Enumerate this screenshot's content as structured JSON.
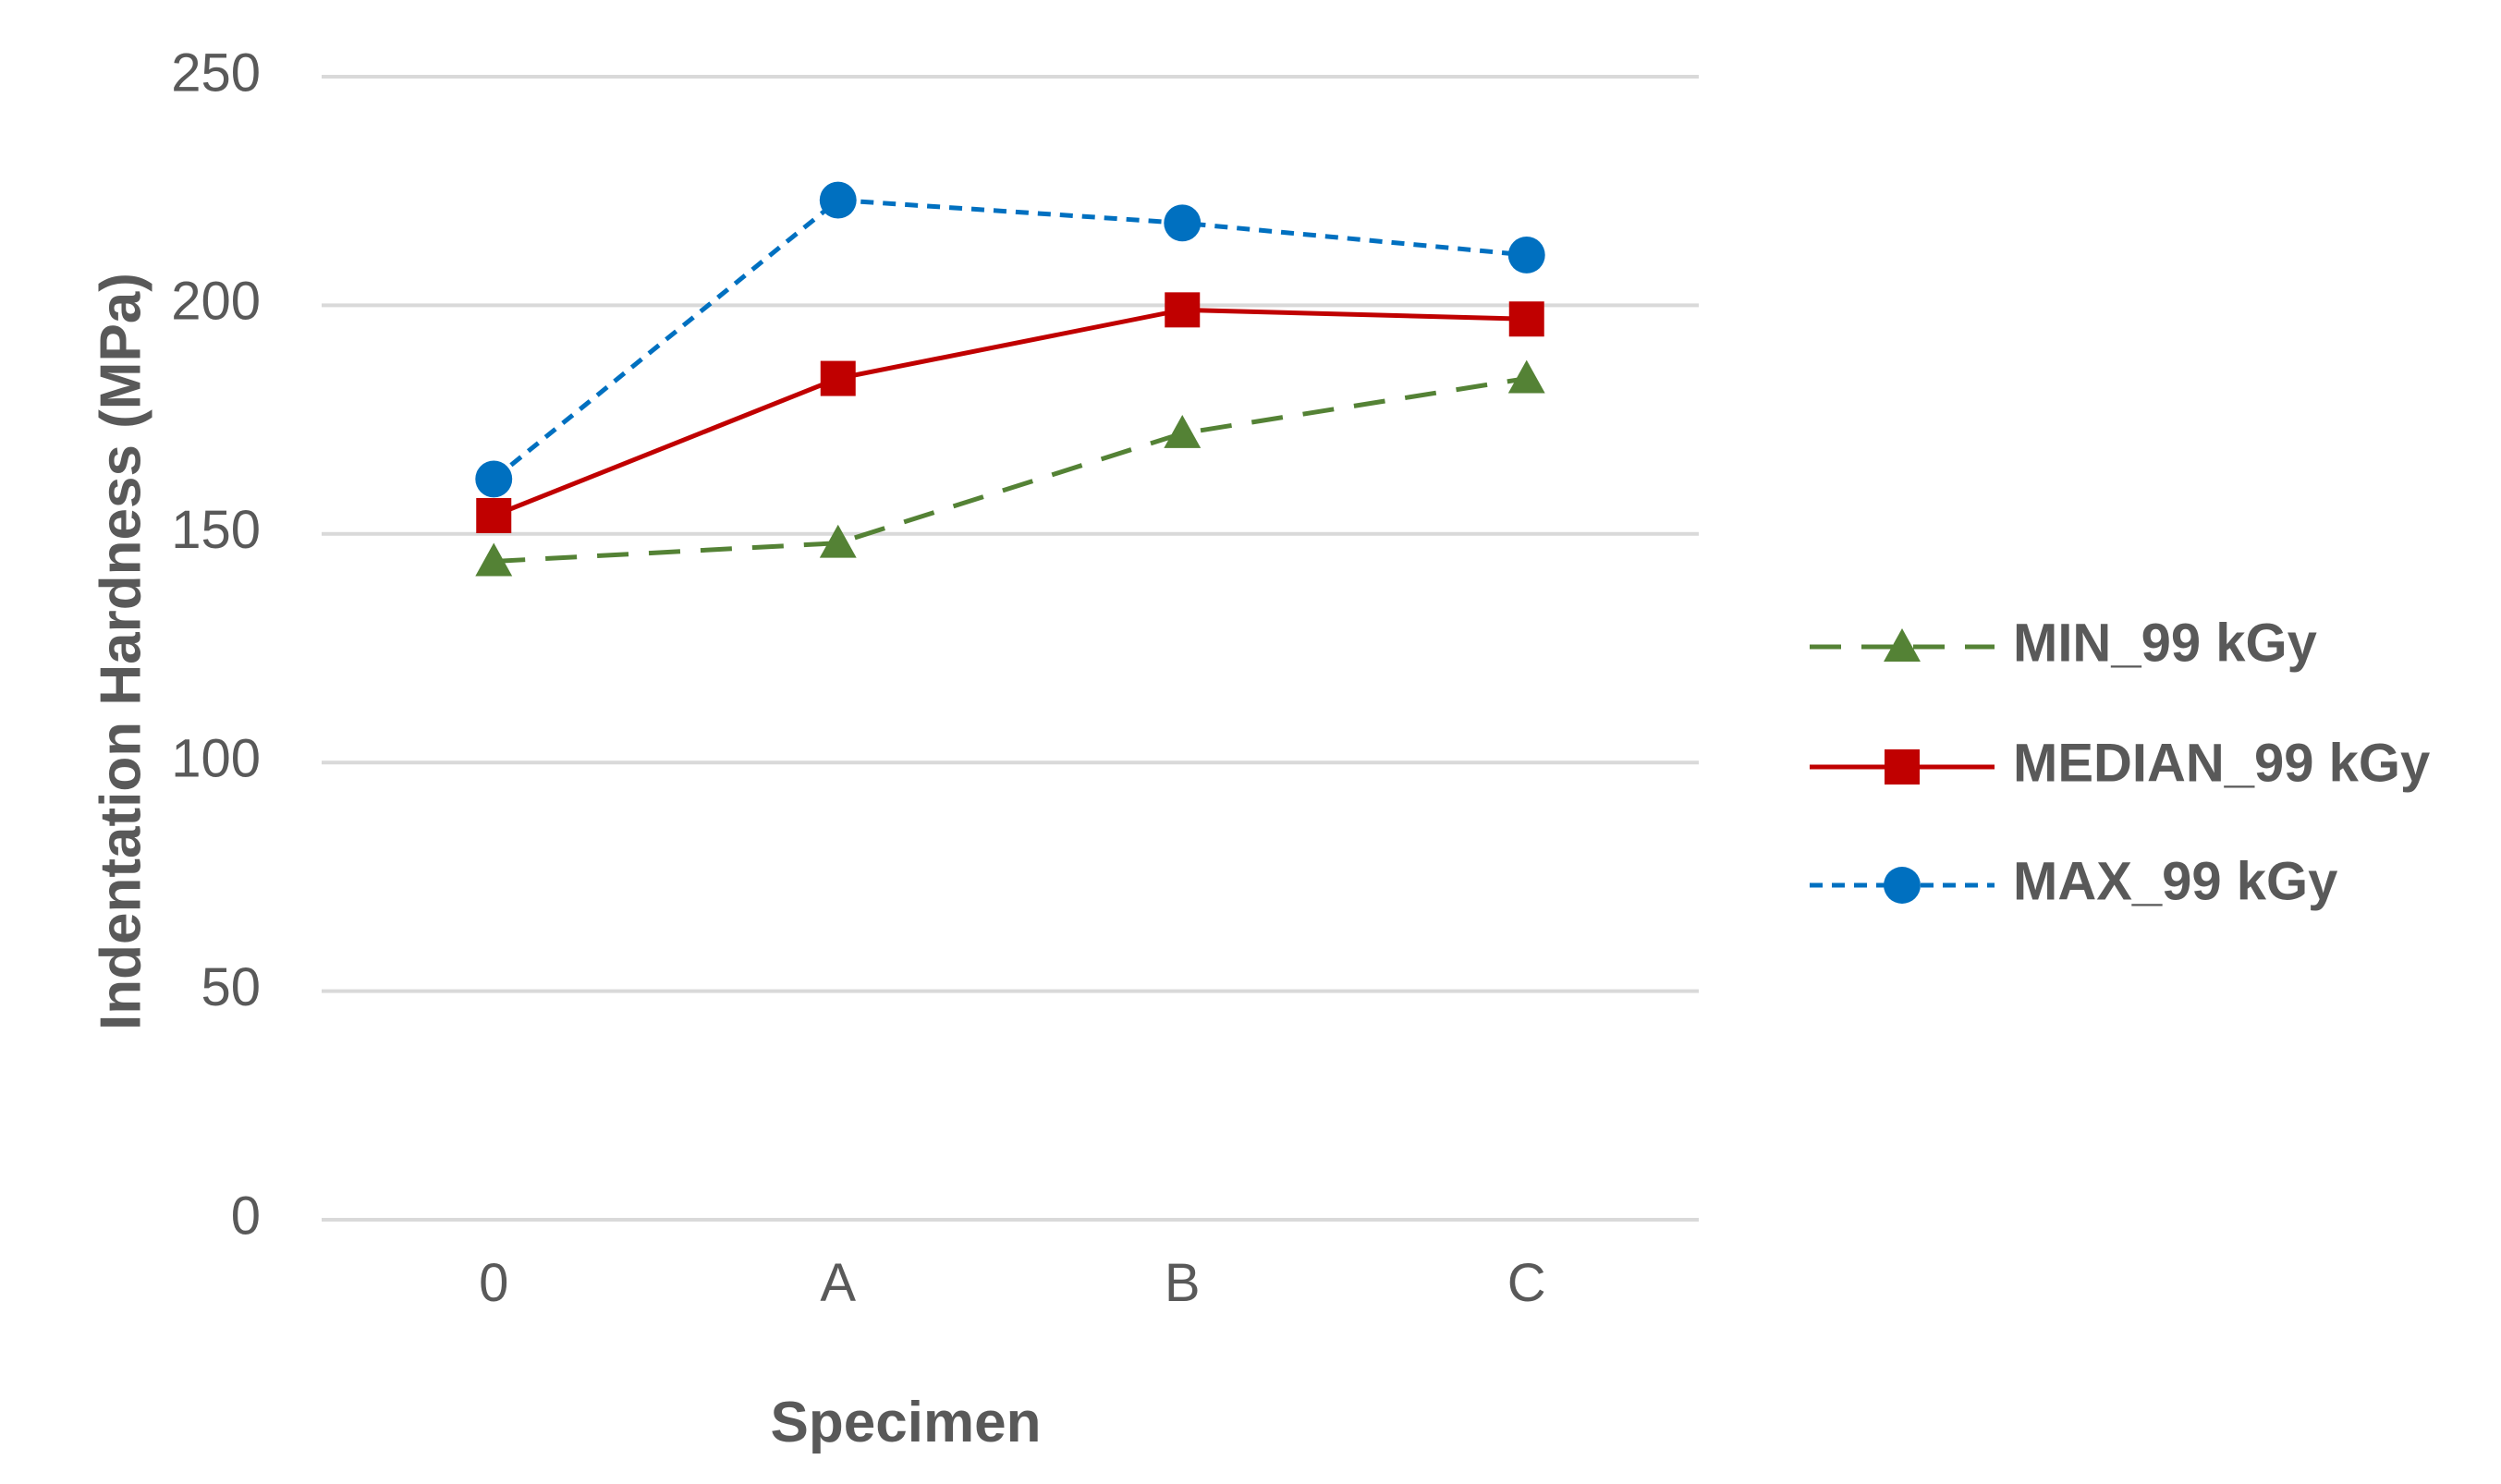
{
  "chart_data": {
    "type": "line",
    "title": "",
    "xlabel": "Specimen",
    "ylabel": "Indentation Hardness (MPa)",
    "categories": [
      "0",
      "A",
      "B",
      "C"
    ],
    "ylim": [
      0,
      250
    ],
    "yticks": [
      0,
      50,
      100,
      150,
      200,
      250
    ],
    "ytick_labels": [
      "0",
      "50",
      "100",
      "150",
      "200",
      "250"
    ],
    "grid": true,
    "legend_position": "right",
    "series": [
      {
        "name": "MIN_99 kGy",
        "values": [
          144,
          148,
          172,
          184
        ],
        "color": "#548235",
        "line_style": "dashed",
        "marker": "triangle"
      },
      {
        "name": "MEDIAN_99 kGy",
        "values": [
          154,
          184,
          199,
          197
        ],
        "color": "#C00000",
        "line_style": "solid",
        "marker": "square"
      },
      {
        "name": "MAX_99 kGy",
        "values": [
          162,
          223,
          218,
          211
        ],
        "color": "#0070C0",
        "line_style": "dotted",
        "marker": "circle"
      }
    ]
  }
}
